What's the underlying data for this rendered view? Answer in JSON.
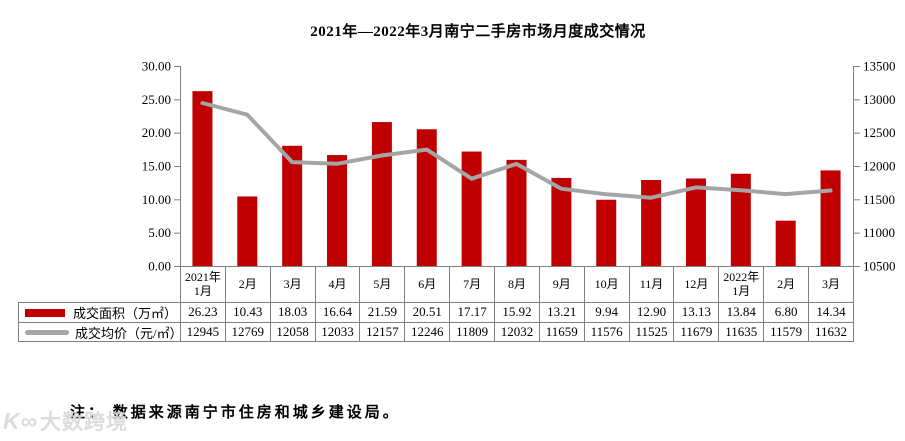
{
  "title": "2021年—2022年3月南宁二手房市场月度成交情况",
  "note": "注： 数据来源南宁市住房和城乡建设局。",
  "watermark": {
    "logo": "K∞",
    "text": "大数跨境"
  },
  "colors": {
    "bar": "#c00000",
    "line": "#a5a5a5",
    "axis": "#808080",
    "table_border": "#808080"
  },
  "chart_data": {
    "type": "combo",
    "title": "2021年—2022年3月南宁二手房市场月度成交情况",
    "categories": [
      "2021年1月",
      "2月",
      "3月",
      "4月",
      "5月",
      "6月",
      "7月",
      "8月",
      "9月",
      "10月",
      "11月",
      "12月",
      "2022年1月",
      "2月",
      "3月"
    ],
    "series": [
      {
        "name": "成交面积（万㎡）",
        "type": "bar",
        "axis": "left",
        "color": "#c00000",
        "values": [
          26.23,
          10.43,
          18.03,
          16.64,
          21.59,
          20.51,
          17.17,
          15.92,
          13.21,
          9.94,
          12.9,
          13.13,
          13.84,
          6.8,
          14.34
        ],
        "display": [
          "26.23",
          "10.43",
          "18.03",
          "16.64",
          "21.59",
          "20.51",
          "17.17",
          "15.92",
          "13.21",
          "9.94",
          "12.90",
          "13.13",
          "13.84",
          "6.80",
          "14.34"
        ]
      },
      {
        "name": "成交均价（元/㎡）",
        "type": "line",
        "axis": "right",
        "color": "#a5a5a5",
        "values": [
          12945,
          12769,
          12058,
          12033,
          12157,
          12246,
          11809,
          12032,
          11659,
          11576,
          11525,
          11679,
          11635,
          11579,
          11632
        ],
        "display": [
          "12945",
          "12769",
          "12058",
          "12033",
          "12157",
          "12246",
          "11809",
          "12032",
          "11659",
          "11576",
          "11525",
          "11679",
          "11635",
          "11579",
          "11632"
        ]
      }
    ],
    "left_axis": {
      "min": 0,
      "max": 30,
      "step": 5,
      "tick_labels": [
        "0.00",
        "5.00",
        "10.00",
        "15.00",
        "20.00",
        "25.00",
        "30.00"
      ]
    },
    "right_axis": {
      "min": 10500,
      "max": 13500,
      "step": 500,
      "tick_labels": [
        "10500",
        "11000",
        "11500",
        "12000",
        "12500",
        "13000",
        "13500"
      ]
    },
    "grid": false,
    "legend_position": "data-table-left"
  }
}
